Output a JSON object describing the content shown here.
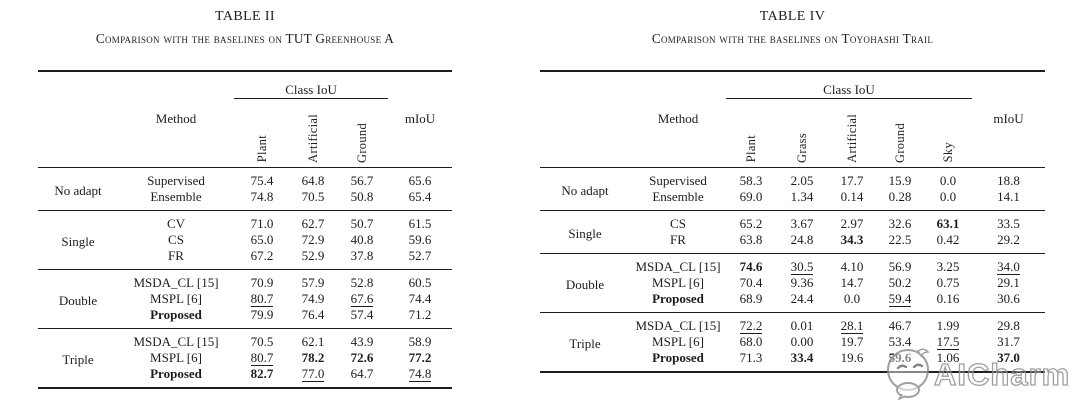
{
  "page": {
    "background": "#ffffff",
    "text_color": "#1d1d1d",
    "rule_color": "#1e1e1e"
  },
  "watermark": {
    "text": "AICharm",
    "logo": "mascot-face",
    "color": "#8f8f8f"
  },
  "tables": [
    {
      "title": "TABLE II",
      "caption": "Comparison with the baselines on TUT Greenhouse A",
      "header": {
        "method": "Method",
        "class_iou": "Class IoU",
        "miou": "mIoU",
        "class_columns": [
          "Plant",
          "Artificial",
          "Ground"
        ]
      },
      "groups": [
        {
          "label": "No adapt",
          "rows": [
            {
              "method": "Supervised",
              "method_bold": false,
              "values": [
                "75.4",
                "64.8",
                "56.7",
                "65.6"
              ],
              "styles": [
                "",
                "",
                "",
                ""
              ]
            },
            {
              "method": "Ensemble",
              "method_bold": false,
              "values": [
                "74.8",
                "70.5",
                "50.8",
                "65.4"
              ],
              "styles": [
                "",
                "",
                "",
                ""
              ]
            }
          ]
        },
        {
          "label": "Single",
          "rows": [
            {
              "method": "CV",
              "method_bold": false,
              "values": [
                "71.0",
                "62.7",
                "50.7",
                "61.5"
              ],
              "styles": [
                "",
                "",
                "",
                ""
              ]
            },
            {
              "method": "CS",
              "method_bold": false,
              "values": [
                "65.0",
                "72.9",
                "40.8",
                "59.6"
              ],
              "styles": [
                "",
                "",
                "",
                ""
              ]
            },
            {
              "method": "FR",
              "method_bold": false,
              "values": [
                "67.2",
                "52.9",
                "37.8",
                "52.7"
              ],
              "styles": [
                "",
                "",
                "",
                ""
              ]
            }
          ]
        },
        {
          "label": "Double",
          "rows": [
            {
              "method": "MSDA_CL [15]",
              "method_bold": false,
              "values": [
                "70.9",
                "57.9",
                "52.8",
                "60.5"
              ],
              "styles": [
                "",
                "",
                "",
                ""
              ]
            },
            {
              "method": "MSPL [6]",
              "method_bold": false,
              "values": [
                "80.7",
                "74.9",
                "67.6",
                "74.4"
              ],
              "styles": [
                "u",
                "",
                "u",
                ""
              ]
            },
            {
              "method": "Proposed",
              "method_bold": true,
              "values": [
                "79.9",
                "76.4",
                "57.4",
                "71.2"
              ],
              "styles": [
                "",
                "",
                "",
                ""
              ]
            }
          ]
        },
        {
          "label": "Triple",
          "rows": [
            {
              "method": "MSDA_CL [15]",
              "method_bold": false,
              "values": [
                "70.5",
                "62.1",
                "43.9",
                "58.9"
              ],
              "styles": [
                "",
                "",
                "",
                ""
              ]
            },
            {
              "method": "MSPL [6]",
              "method_bold": false,
              "values": [
                "80.7",
                "78.2",
                "72.6",
                "77.2"
              ],
              "styles": [
                "u",
                "b",
                "b",
                "b"
              ]
            },
            {
              "method": "Proposed",
              "method_bold": true,
              "values": [
                "82.7",
                "77.0",
                "64.7",
                "74.8"
              ],
              "styles": [
                "b",
                "u",
                "",
                "u"
              ]
            }
          ]
        }
      ]
    },
    {
      "title": "TABLE IV",
      "caption": "Comparison with the baselines on Toyohashi Trail",
      "header": {
        "method": "Method",
        "class_iou": "Class IoU",
        "miou": "mIoU",
        "class_columns": [
          "Plant",
          "Grass",
          "Artificial",
          "Ground",
          "Sky"
        ]
      },
      "groups": [
        {
          "label": "No adapt",
          "rows": [
            {
              "method": "Supervised",
              "method_bold": false,
              "values": [
                "58.3",
                "2.05",
                "17.7",
                "15.9",
                "0.0",
                "18.8"
              ],
              "styles": [
                "",
                "",
                "",
                "",
                "",
                ""
              ]
            },
            {
              "method": "Ensemble",
              "method_bold": false,
              "values": [
                "69.0",
                "1.34",
                "0.14",
                "0.28",
                "0.0",
                "14.1"
              ],
              "styles": [
                "",
                "",
                "",
                "",
                "",
                ""
              ]
            }
          ]
        },
        {
          "label": "Single",
          "rows": [
            {
              "method": "CS",
              "method_bold": false,
              "values": [
                "65.2",
                "3.67",
                "2.97",
                "32.6",
                "63.1",
                "33.5"
              ],
              "styles": [
                "",
                "",
                "",
                "",
                "b",
                ""
              ]
            },
            {
              "method": "FR",
              "method_bold": false,
              "values": [
                "63.8",
                "24.8",
                "34.3",
                "22.5",
                "0.42",
                "29.2"
              ],
              "styles": [
                "",
                "",
                "b",
                "",
                "",
                ""
              ]
            }
          ]
        },
        {
          "label": "Double",
          "rows": [
            {
              "method": "MSDA_CL [15]",
              "method_bold": false,
              "values": [
                "74.6",
                "30.5",
                "4.10",
                "56.9",
                "3.25",
                "34.0"
              ],
              "styles": [
                "b",
                "u",
                "",
                "",
                "",
                "u"
              ]
            },
            {
              "method": "MSPL [6]",
              "method_bold": false,
              "values": [
                "70.4",
                "9.36",
                "14.7",
                "50.2",
                "0.75",
                "29.1"
              ],
              "styles": [
                "",
                "",
                "",
                "",
                "",
                ""
              ]
            },
            {
              "method": "Proposed",
              "method_bold": true,
              "values": [
                "68.9",
                "24.4",
                "0.0",
                "59.4",
                "0.16",
                "30.6"
              ],
              "styles": [
                "",
                "",
                "",
                "u",
                "",
                ""
              ]
            }
          ]
        },
        {
          "label": "Triple",
          "rows": [
            {
              "method": "MSDA_CL [15]",
              "method_bold": false,
              "values": [
                "72.2",
                "0.01",
                "28.1",
                "46.7",
                "1.99",
                "29.8"
              ],
              "styles": [
                "u",
                "",
                "u",
                "",
                "",
                ""
              ]
            },
            {
              "method": "MSPL [6]",
              "method_bold": false,
              "values": [
                "68.0",
                "0.00",
                "19.7",
                "53.4",
                "17.5",
                "31.7"
              ],
              "styles": [
                "",
                "",
                "",
                "",
                "u",
                ""
              ]
            },
            {
              "method": "Proposed",
              "method_bold": true,
              "values": [
                "71.3",
                "33.4",
                "19.6",
                "59.6",
                "1.06",
                "37.0"
              ],
              "styles": [
                "",
                "b",
                "",
                "b",
                "",
                "b"
              ]
            }
          ]
        }
      ]
    }
  ]
}
